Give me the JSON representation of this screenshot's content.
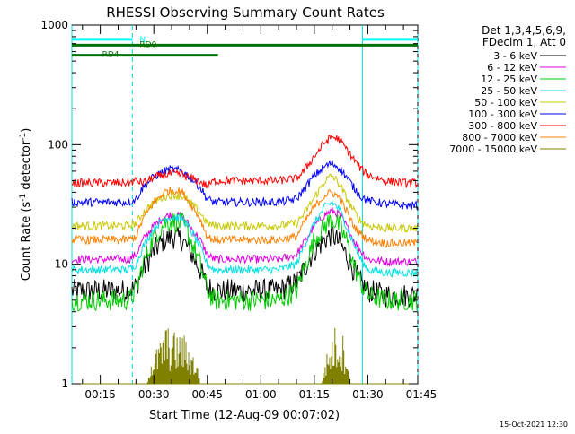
{
  "chart_data": {
    "type": "line",
    "title": "RHESSI Observing Summary Count Rates",
    "xlabel": "Start Time (12-Aug-09 00:07:02)",
    "ylabel_main": "Count Rate (s",
    "ylabel_sup1": "-1",
    "ylabel_mid": " detector",
    "ylabel_sup2": "-1",
    "ylabel_end": ")",
    "y_scale": "log",
    "ylim": [
      1,
      1000
    ],
    "xlim_minutes": [
      7.03,
      104
    ],
    "x_ticks": [
      {
        "t": 15,
        "label": "00:15"
      },
      {
        "t": 30,
        "label": "00:30"
      },
      {
        "t": 45,
        "label": "00:45"
      },
      {
        "t": 60,
        "label": "01:00"
      },
      {
        "t": 75,
        "label": "01:15"
      },
      {
        "t": 90,
        "label": "01:30"
      },
      {
        "t": 105,
        "label": "01:45"
      }
    ],
    "y_ticks": [
      {
        "v": 1,
        "label": "1"
      },
      {
        "v": 10,
        "label": "10"
      },
      {
        "v": 100,
        "label": "100"
      },
      {
        "v": 1000,
        "label": "1000"
      }
    ],
    "legend_header": [
      "Det 1,3,4,5,6,9,",
      "FDecim 1, Att 0"
    ],
    "series": [
      {
        "name": "3 - 6 keV",
        "color": "#000000",
        "t": [
          7,
          15,
          20,
          23,
          25,
          27,
          30,
          33,
          35,
          38,
          40,
          43,
          45,
          47,
          49,
          55,
          60,
          65,
          70,
          72,
          75,
          78,
          80,
          82,
          84,
          86,
          88,
          90,
          95,
          100,
          104
        ],
        "v": [
          6,
          6,
          6,
          6,
          6.5,
          9,
          13,
          16,
          17,
          16,
          13,
          9,
          6.5,
          6,
          6,
          6,
          6,
          6,
          7,
          9,
          13,
          16,
          18,
          15,
          12,
          9,
          7,
          6,
          5.5,
          5.5,
          5.5
        ]
      },
      {
        "name": "6 - 12 keV",
        "color": "#e000e0",
        "t": [
          7,
          15,
          20,
          23,
          25,
          27,
          30,
          33,
          35,
          38,
          40,
          43,
          45,
          47,
          49,
          55,
          60,
          65,
          70,
          72,
          75,
          78,
          80,
          82,
          84,
          86,
          88,
          90,
          95,
          100,
          104
        ],
        "v": [
          11,
          11,
          11,
          11,
          12,
          16,
          21,
          25,
          26,
          25,
          21,
          16,
          12,
          11,
          11,
          11,
          11,
          11,
          12,
          15,
          21,
          26,
          28,
          26,
          21,
          16,
          13,
          11,
          10.5,
          10.5,
          10.5
        ]
      },
      {
        "name": "12 - 25 keV",
        "color": "#00cc00",
        "t": [
          7,
          15,
          20,
          23,
          25,
          27,
          30,
          33,
          35,
          38,
          40,
          43,
          45,
          47,
          49,
          55,
          60,
          65,
          70,
          72,
          75,
          78,
          80,
          82,
          84,
          86,
          88,
          90,
          95,
          100,
          104
        ],
        "v": [
          5,
          5,
          5,
          5,
          6,
          10,
          17,
          22,
          23,
          22,
          17,
          10,
          6,
          5,
          5,
          5,
          5,
          5,
          6,
          9,
          16,
          21,
          24,
          21,
          16,
          10,
          7,
          5.5,
          5,
          5,
          5
        ]
      },
      {
        "name": "25 - 50 keV",
        "color": "#00e0e0",
        "t": [
          7,
          15,
          20,
          23,
          25,
          27,
          30,
          33,
          35,
          38,
          40,
          43,
          45,
          47,
          49,
          55,
          60,
          65,
          70,
          72,
          75,
          78,
          80,
          82,
          84,
          86,
          88,
          90,
          95,
          100,
          104
        ],
        "v": [
          9,
          9,
          9,
          9,
          10,
          14,
          20,
          24,
          25,
          24,
          20,
          14,
          10,
          9,
          9,
          9,
          9,
          9,
          10,
          14,
          22,
          30,
          33,
          29,
          21,
          15,
          11,
          9,
          8.5,
          8.5,
          8.5
        ]
      },
      {
        "name": "50 - 100 keV",
        "color": "#c8c800",
        "t": [
          7,
          15,
          20,
          23,
          25,
          27,
          30,
          33,
          35,
          38,
          40,
          43,
          45,
          47,
          49,
          55,
          60,
          65,
          70,
          72,
          75,
          78,
          80,
          82,
          84,
          86,
          88,
          90,
          95,
          100,
          104
        ],
        "v": [
          21,
          21,
          21,
          21,
          22,
          27,
          33,
          37,
          38,
          37,
          33,
          27,
          22,
          21,
          21,
          21,
          21,
          21,
          22,
          26,
          36,
          50,
          55,
          47,
          36,
          28,
          23,
          21,
          20,
          20,
          20
        ]
      },
      {
        "name": "100 - 300 keV",
        "color": "#0000ff",
        "t": [
          7,
          15,
          20,
          23,
          25,
          27,
          30,
          33,
          35,
          38,
          40,
          43,
          45,
          47,
          49,
          55,
          60,
          65,
          70,
          72,
          75,
          78,
          80,
          82,
          84,
          86,
          88,
          90,
          95,
          100,
          104
        ],
        "v": [
          33,
          33,
          33,
          33,
          35,
          44,
          54,
          60,
          62,
          60,
          54,
          44,
          35,
          33,
          33,
          33,
          33,
          33,
          35,
          42,
          55,
          66,
          70,
          64,
          54,
          44,
          37,
          34,
          32,
          31,
          31
        ]
      },
      {
        "name": "300 - 800 keV",
        "color": "#ff0000",
        "t": [
          7,
          15,
          20,
          23,
          25,
          27,
          30,
          33,
          35,
          38,
          40,
          43,
          45,
          47,
          49,
          55,
          60,
          65,
          70,
          72,
          75,
          78,
          80,
          82,
          84,
          86,
          88,
          90,
          95,
          100,
          104
        ],
        "v": [
          48,
          48,
          48,
          48,
          50,
          48,
          53,
          56,
          57,
          56,
          53,
          49,
          45,
          50,
          50,
          50,
          50,
          50,
          52,
          60,
          80,
          105,
          117,
          110,
          92,
          76,
          63,
          56,
          50,
          48,
          48
        ]
      },
      {
        "name": "800 - 7000 keV",
        "color": "#ff8000",
        "t": [
          7,
          15,
          20,
          23,
          25,
          27,
          30,
          33,
          35,
          38,
          40,
          43,
          45,
          47,
          49,
          55,
          60,
          65,
          70,
          72,
          75,
          78,
          80,
          82,
          84,
          86,
          88,
          90,
          95,
          100,
          104
        ],
        "v": [
          16,
          16,
          16,
          16,
          17,
          24,
          33,
          40,
          42,
          40,
          33,
          24,
          17,
          16,
          16,
          16,
          16,
          16,
          17,
          22,
          30,
          38,
          40,
          36,
          28,
          21,
          18,
          16,
          15,
          15,
          15
        ]
      },
      {
        "name": "7000 - 15000 keV",
        "color": "#808000",
        "t": [
          7,
          28,
          29,
          32,
          33,
          37,
          38,
          42,
          43,
          77,
          78,
          80,
          81,
          84,
          85,
          104
        ],
        "v": [
          1,
          1,
          1.6,
          2.4,
          3.2,
          2.6,
          2.8,
          1.6,
          1,
          1,
          1.6,
          2.6,
          3.2,
          2.4,
          1,
          1
        ]
      }
    ],
    "flags": [
      {
        "name": "N",
        "color": "#00ffff",
        "segments": [
          [
            7,
            24
          ],
          [
            88.5,
            104
          ]
        ],
        "level": 760
      },
      {
        "name": "RD0",
        "color": "#007000",
        "segments": [
          [
            7,
            104
          ]
        ],
        "level": 680
      },
      {
        "name": "RD4",
        "color": "#007000",
        "segments": [
          [
            7,
            24
          ],
          [
            24,
            48
          ]
        ],
        "level": 560
      }
    ],
    "vlines": [
      {
        "t": 7.03,
        "style": "solid"
      },
      {
        "t": 24,
        "style": "dashed"
      },
      {
        "t": 88.5,
        "style": "solid"
      },
      {
        "t": 104,
        "style": "dashed"
      }
    ],
    "timestamp": "15-Oct-2021 12:30"
  }
}
